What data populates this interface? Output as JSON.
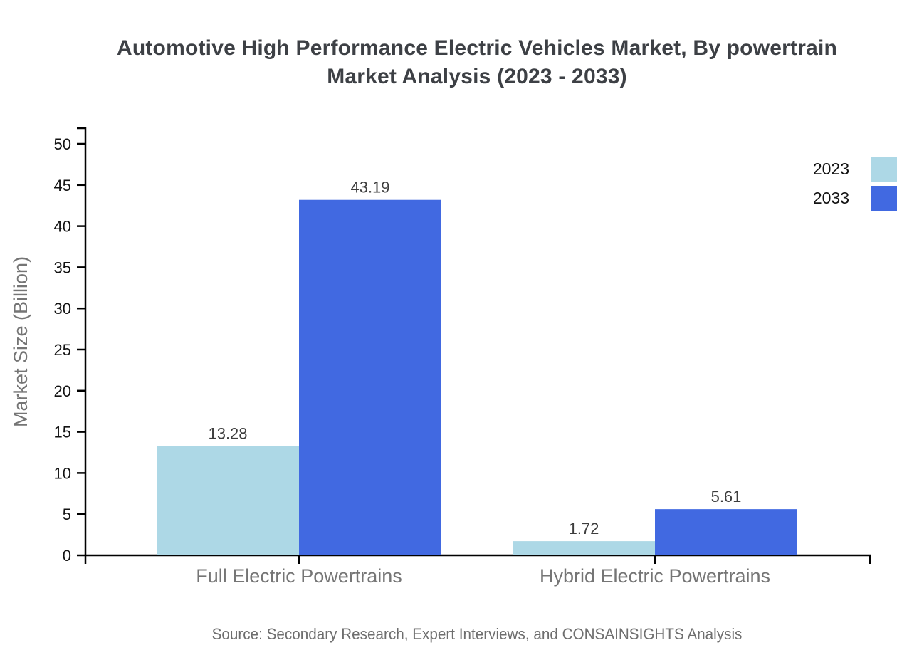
{
  "title": {
    "line1": "Automotive High Performance Electric Vehicles Market, By powertrain",
    "line2": "Market Analysis (2023 - 2033)"
  },
  "source": {
    "text": "Source: Secondary Research, Expert Interviews, and CONSAINSIGHTS Analysis"
  },
  "chart_data": {
    "type": "bar",
    "title": "Automotive High Performance Electric Vehicles Market, By powertrain Market Analysis (2023 - 2033)",
    "categories": [
      "Full Electric Powertrains",
      "Hybrid Electric Powertrains"
    ],
    "series": [
      {
        "name": "2023",
        "color": "#ADD8E6",
        "values": [
          13.28,
          1.72
        ]
      },
      {
        "name": "2033",
        "color": "#4169E1",
        "values": [
          43.19,
          5.61
        ]
      }
    ],
    "value_labels": [
      [
        "13.28",
        "1.72"
      ],
      [
        "43.19",
        "5.61"
      ]
    ],
    "xlabel": "",
    "ylabel": "Market Size (Billion)",
    "ylim": [
      0,
      50
    ],
    "ytick_step": 5,
    "yticks": [
      0,
      5,
      10,
      15,
      20,
      25,
      30,
      35,
      40,
      45,
      50
    ],
    "grid": false,
    "legend_position": "top-right-edge",
    "axis_color": "#000000",
    "tick_label_color": "#131313",
    "value_label_color": "#3d3d3d",
    "category_label_color": "#757575",
    "axis_title_color": "#757575"
  }
}
